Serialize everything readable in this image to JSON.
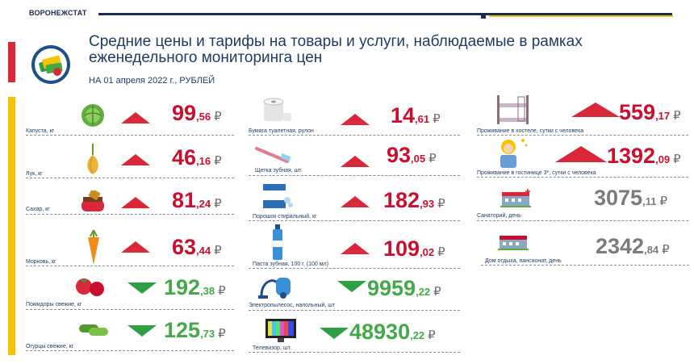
{
  "header": {
    "brand": "ВОРОНЕЖСТАТ",
    "title": "Средние цены и тарифы на товары и услуги, наблюдаемые в рамках еженедельного мониторинга цен",
    "subtitle": "НА 01 апреля  2022 г., РУБЛЕЙ"
  },
  "colors": {
    "up": "#d9283a",
    "down": "#2f9e44",
    "neutral": "#7b7b7b",
    "brand": "#1b2a4e",
    "accent": "#f5c400"
  },
  "currency": "₽",
  "items": [
    {
      "label": "Капуста, кг",
      "int": "99",
      "frac": ",56",
      "trend": "up",
      "icon": "cabbage-icon"
    },
    {
      "label": "Лук, кг",
      "int": "46",
      "frac": ",16",
      "trend": "up",
      "icon": "onion-icon"
    },
    {
      "label": "Сахар, кг",
      "int": "81",
      "frac": ",24",
      "trend": "up",
      "icon": "sugar-icon"
    },
    {
      "label": "Морковь, кг",
      "int": "63",
      "frac": ",44",
      "trend": "up",
      "icon": "carrot-icon"
    },
    {
      "label": "Помидоры свежие, кг",
      "int": "192",
      "frac": ",38",
      "trend": "down",
      "icon": "tomato-icon"
    },
    {
      "label": "Огурцы свежие, кг",
      "int": "125",
      "frac": ",73",
      "trend": "down",
      "icon": "cucumber-icon"
    },
    {
      "label": "Бумага туалетная, рулон",
      "int": "14",
      "frac": ",61",
      "trend": "up",
      "icon": "toilet-paper-icon"
    },
    {
      "label": "Щетка зубная, шт.",
      "int": "93",
      "frac": ",05",
      "trend": "up",
      "icon": "toothbrush-icon"
    },
    {
      "label": "Порошок стиральный, кг",
      "int": "182",
      "frac": ",93",
      "trend": "up",
      "icon": "detergent-icon"
    },
    {
      "label": "Паста зубная, 100 г. (100 мл)",
      "int": "109",
      "frac": ",02",
      "trend": "up",
      "icon": "toothpaste-icon"
    },
    {
      "label": "Электропылесос, напольный, шт",
      "int": "9959",
      "frac": ",22",
      "trend": "down",
      "icon": "vacuum-cleaner-icon"
    },
    {
      "label": "Телевизор, шт.",
      "int": "48930",
      "frac": ",22",
      "trend": "down",
      "icon": "tv-icon"
    },
    {
      "label": "Проживание  в хостеле, сутки с человека",
      "int": "559",
      "frac": ",17",
      "trend": "up",
      "icon": "bunk-bed-icon"
    },
    {
      "label": "Проживание  в гостинице 3*, сутки с человека",
      "int": "1392",
      "frac": ",09",
      "trend": "up",
      "icon": "hotel-maid-icon"
    },
    {
      "label": "Санаторий, день",
      "int": "3075",
      "frac": ",11",
      "trend": "none",
      "icon": "sanatorium-icon"
    },
    {
      "label": "Дом отдыха, пансионат, день",
      "int": "2342",
      "frac": ",84",
      "trend": "none",
      "icon": "resort-icon"
    }
  ]
}
